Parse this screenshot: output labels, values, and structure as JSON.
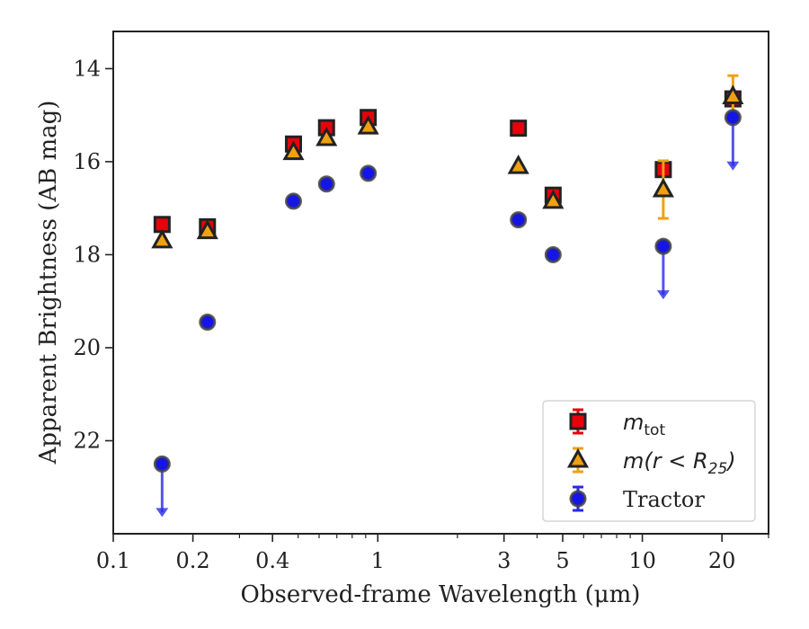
{
  "chart_data": {
    "type": "scatter",
    "xlabel": "Observed-frame Wavelength (μm)",
    "ylabel": "Apparent Brightness (AB mag)",
    "xscale": "log",
    "xlim": [
      0.1,
      30
    ],
    "ylim": [
      24,
      13.2
    ],
    "y_inverted": true,
    "x_ticks": [
      {
        "value": 0.1,
        "label": "0.1"
      },
      {
        "value": 0.2,
        "label": "0.2"
      },
      {
        "value": 0.4,
        "label": "0.4"
      },
      {
        "value": 1,
        "label": "1"
      },
      {
        "value": 3,
        "label": "3"
      },
      {
        "value": 5,
        "label": "5"
      },
      {
        "value": 10,
        "label": "10"
      },
      {
        "value": 20,
        "label": "20"
      }
    ],
    "y_ticks": [
      {
        "value": 14,
        "label": "14"
      },
      {
        "value": 16,
        "label": "16"
      },
      {
        "value": 18,
        "label": "18"
      },
      {
        "value": 20,
        "label": "20"
      },
      {
        "value": 22,
        "label": "22"
      }
    ],
    "grid": false,
    "legend_position": "bottom-right",
    "series": [
      {
        "name": "m_tot",
        "label_main": "m",
        "label_sub": "tot",
        "marker": "square",
        "color": "#e8000b",
        "edge": "#222222",
        "points": [
          {
            "x": 0.153,
            "y": 17.35
          },
          {
            "x": 0.227,
            "y": 17.4
          },
          {
            "x": 0.48,
            "y": 15.62
          },
          {
            "x": 0.64,
            "y": 15.27
          },
          {
            "x": 0.92,
            "y": 15.05
          },
          {
            "x": 3.4,
            "y": 15.28
          },
          {
            "x": 4.6,
            "y": 16.72
          },
          {
            "x": 12.0,
            "y": 16.17,
            "err": 0.15
          },
          {
            "x": 22.0,
            "y": 14.65
          }
        ]
      },
      {
        "name": "m(r < R25)",
        "label_main": "m(r < R",
        "label_sub": "25",
        "label_tail": ")",
        "marker": "triangle",
        "color": "#f0a010",
        "edge": "#222222",
        "points": [
          {
            "x": 0.153,
            "y": 17.7
          },
          {
            "x": 0.227,
            "y": 17.5
          },
          {
            "x": 0.48,
            "y": 15.8
          },
          {
            "x": 0.64,
            "y": 15.5
          },
          {
            "x": 0.92,
            "y": 15.25
          },
          {
            "x": 3.4,
            "y": 16.1
          },
          {
            "x": 4.6,
            "y": 16.85
          },
          {
            "x": 12.0,
            "y": 16.6,
            "err_low": 0.62,
            "err_high": 0.62
          },
          {
            "x": 22.0,
            "y": 14.6,
            "err_low": 0.45,
            "err_high": 0.45
          }
        ]
      },
      {
        "name": "Tractor",
        "label_main": "Tractor",
        "marker": "circle",
        "color": "#1515e8",
        "edge": "#444444",
        "points": [
          {
            "x": 0.153,
            "y": 22.5,
            "upper_limit": true
          },
          {
            "x": 0.227,
            "y": 19.45
          },
          {
            "x": 0.48,
            "y": 16.85
          },
          {
            "x": 0.64,
            "y": 16.48
          },
          {
            "x": 0.92,
            "y": 16.25
          },
          {
            "x": 3.4,
            "y": 17.25
          },
          {
            "x": 4.6,
            "y": 18.0
          },
          {
            "x": 12.0,
            "y": 17.82,
            "upper_limit": true
          },
          {
            "x": 22.0,
            "y": 15.05,
            "upper_limit": true
          }
        ]
      }
    ]
  }
}
